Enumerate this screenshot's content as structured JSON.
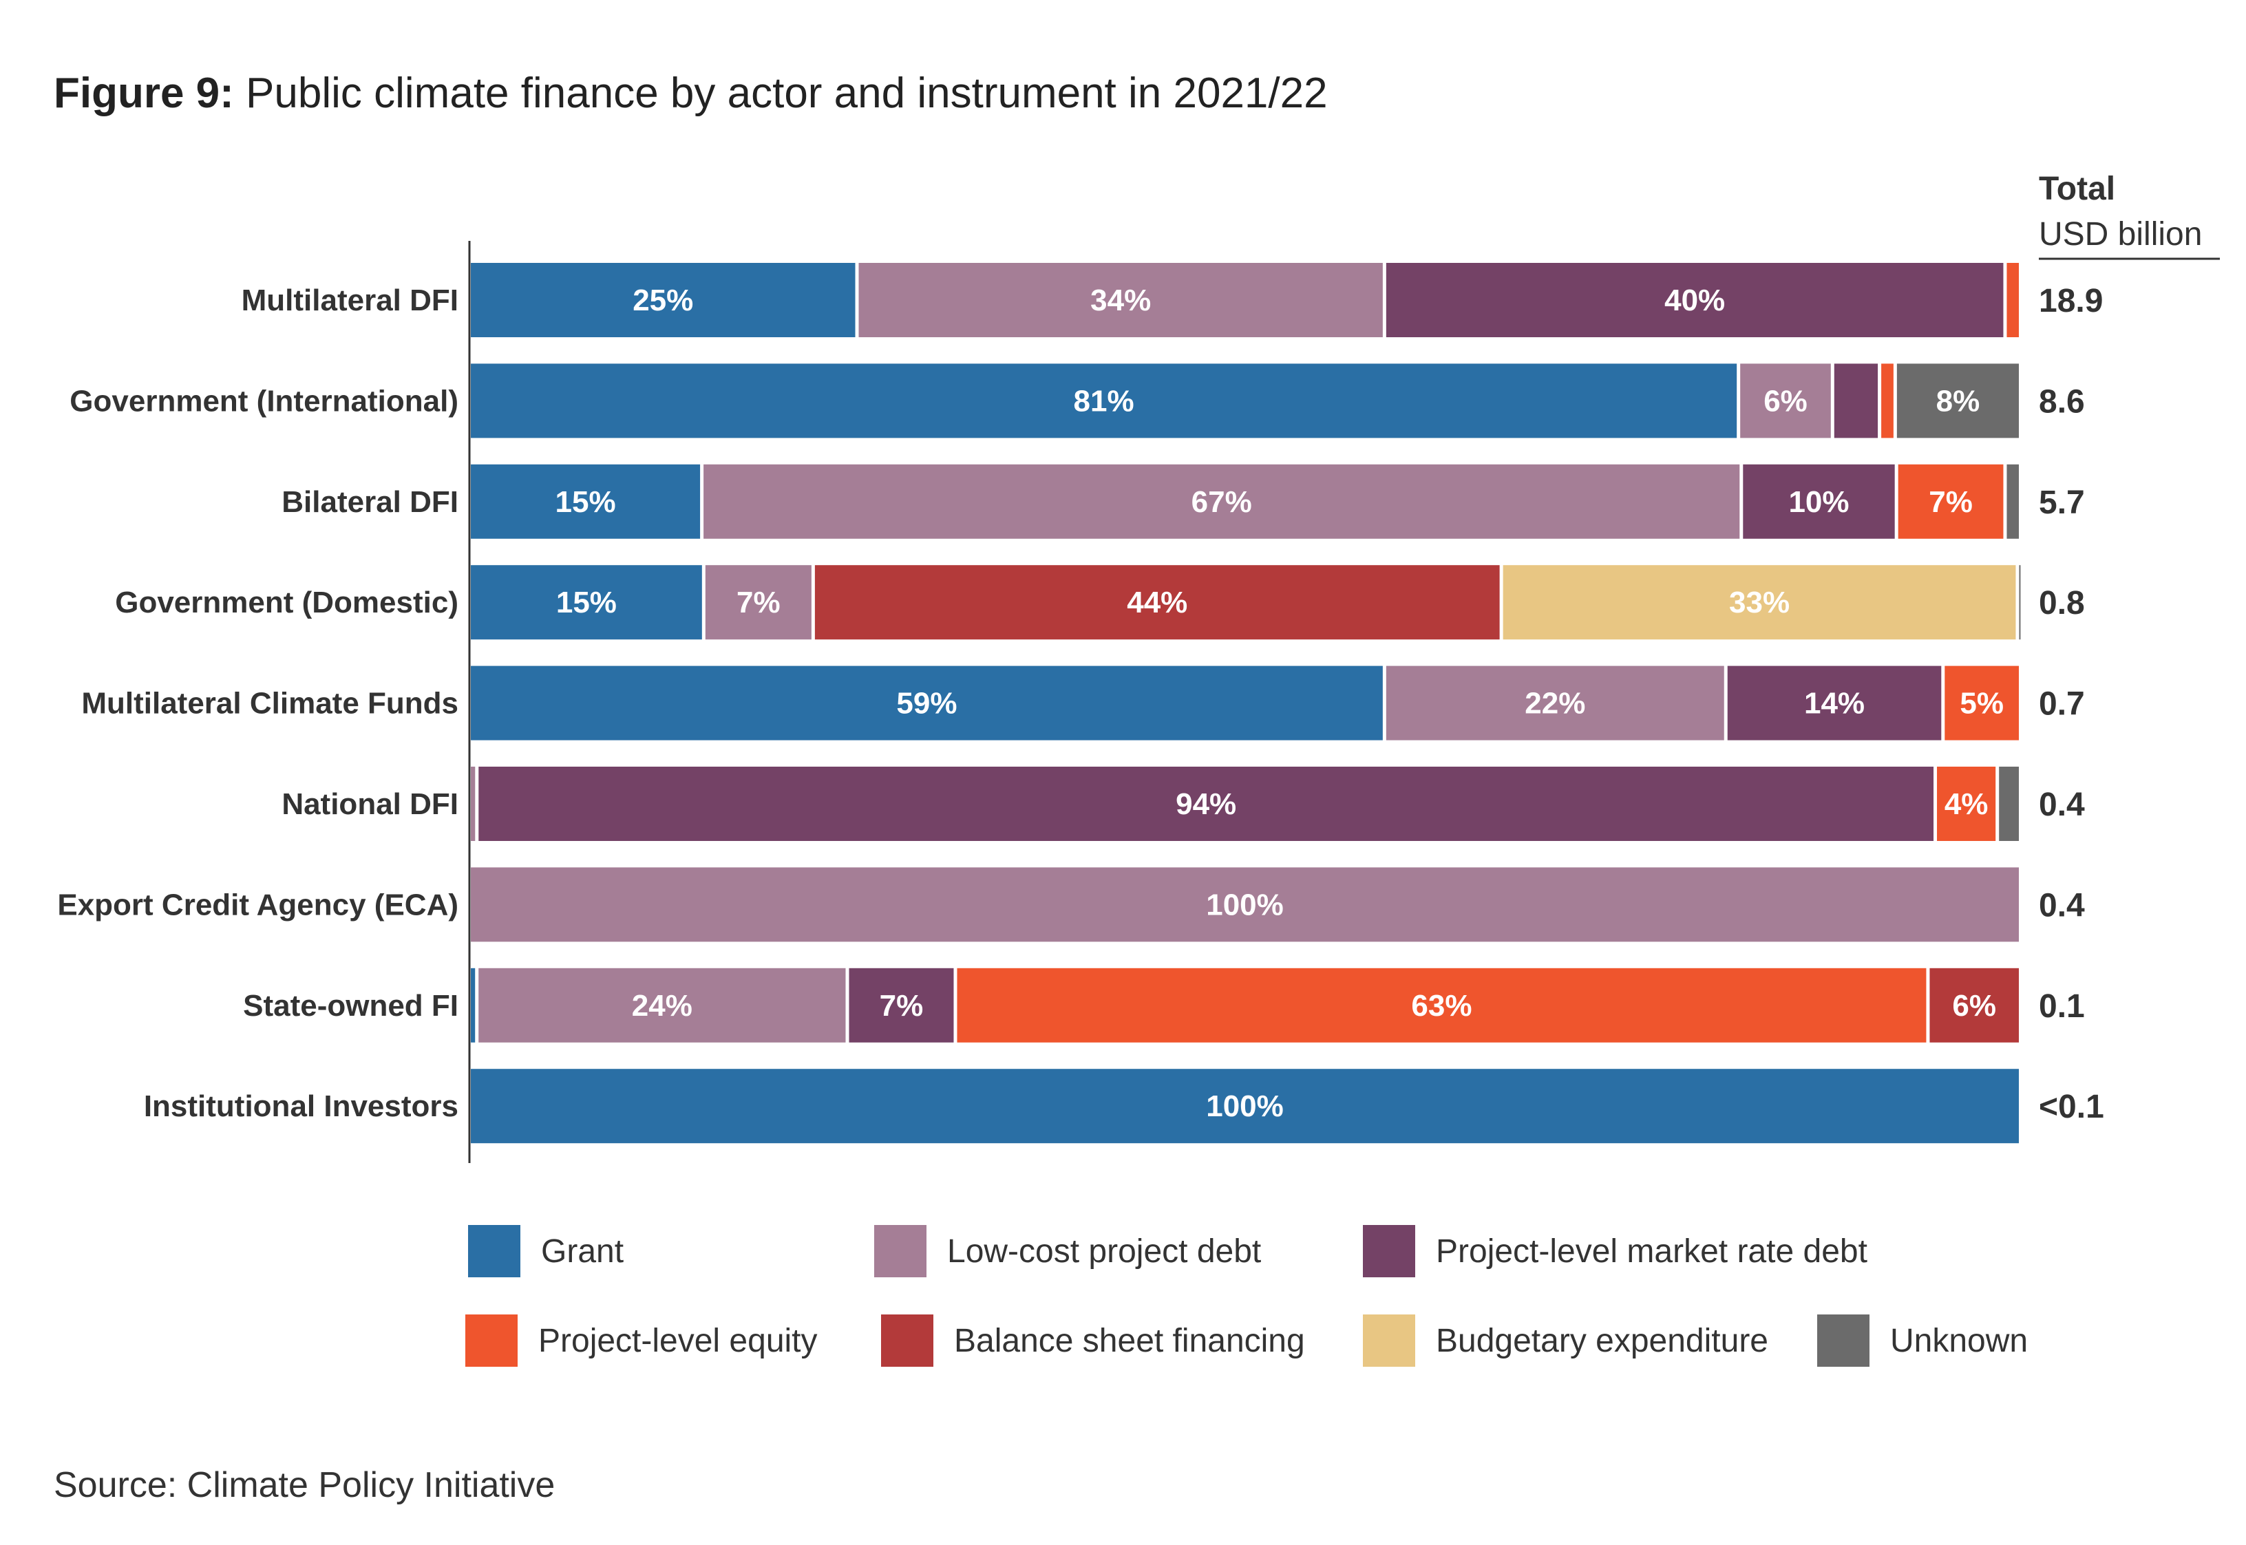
{
  "title": {
    "figure_label": "Figure 9:",
    "text": "Public climate finance by actor and instrument in 2021/22"
  },
  "totals_header": {
    "line1": "Total",
    "line2": "USD billion"
  },
  "colors": {
    "Grant": "#2a6fa5",
    "Low-cost project debt": "#a57e96",
    "Project-level market rate debt": "#744266",
    "Project-level equity": "#ef552d",
    "Balance sheet financing": "#b33a3a",
    "Budgetary expenditure": "#e8c683",
    "Unknown": "#6b6b6b"
  },
  "legend": [
    "Grant",
    "Low-cost project debt",
    "Project-level market rate debt",
    "Project-level equity",
    "Balance sheet financing",
    "Budgetary expenditure",
    "Unknown"
  ],
  "chart_data": {
    "type": "bar",
    "orientation": "horizontal",
    "stacked": "percent",
    "title": "Figure 9: Public climate finance by actor and instrument in 2021/22",
    "xlim": [
      0,
      100
    ],
    "categories": [
      "Multilateral DFI",
      "Government (International)",
      "Bilateral DFI",
      "Government (Domestic)",
      "Multilateral Climate Funds",
      "National DFI",
      "Export Credit Agency (ECA)",
      "State-owned FI",
      "Institutional Investors"
    ],
    "totals": [
      "18.9",
      "8.6",
      "5.7",
      "0.8",
      "0.7",
      "0.4",
      "0.4",
      "0.1",
      "<0.1"
    ],
    "series": [
      {
        "name": "Grant",
        "values": [
          25,
          81,
          15,
          15,
          59,
          0,
          0,
          0.5,
          100
        ],
        "labels": [
          "25%",
          "81%",
          "15%",
          "15%",
          "59%",
          "",
          "",
          "",
          "100%"
        ]
      },
      {
        "name": "Low-cost project debt",
        "values": [
          34,
          6,
          67,
          7,
          22,
          0.5,
          100,
          24,
          0
        ],
        "labels": [
          "34%",
          "6%",
          "67%",
          "7%",
          "22%",
          "",
          "100%",
          "24%",
          ""
        ]
      },
      {
        "name": "Project-level market rate debt",
        "values": [
          40,
          3,
          10,
          0,
          14,
          94,
          0,
          7,
          0
        ],
        "labels": [
          "40%",
          "",
          "10%",
          "",
          "14%",
          "94%",
          "",
          "7%",
          ""
        ]
      },
      {
        "name": "Project-level equity",
        "values": [
          1,
          1,
          7,
          0,
          5,
          4,
          0,
          63,
          0
        ],
        "labels": [
          "",
          "",
          "7%",
          "",
          "5%",
          "4%",
          "",
          "63%",
          ""
        ]
      },
      {
        "name": "Balance sheet financing",
        "values": [
          0,
          0,
          0,
          44,
          0,
          0,
          0,
          6,
          0
        ],
        "labels": [
          "",
          "",
          "",
          "44%",
          "",
          "",
          "",
          "6%",
          ""
        ]
      },
      {
        "name": "Budgetary expenditure",
        "values": [
          0,
          0,
          0,
          33,
          0,
          0,
          0,
          0,
          0
        ],
        "labels": [
          "",
          "",
          "",
          "33%",
          "",
          "",
          "",
          "",
          ""
        ]
      },
      {
        "name": "Unknown",
        "values": [
          0,
          8,
          1,
          0.2,
          0,
          1.5,
          0,
          0,
          0
        ],
        "labels": [
          "",
          "8%",
          "",
          "",
          "",
          "",
          "",
          "",
          ""
        ]
      }
    ]
  },
  "source": "Source: Climate Policy Initiative"
}
